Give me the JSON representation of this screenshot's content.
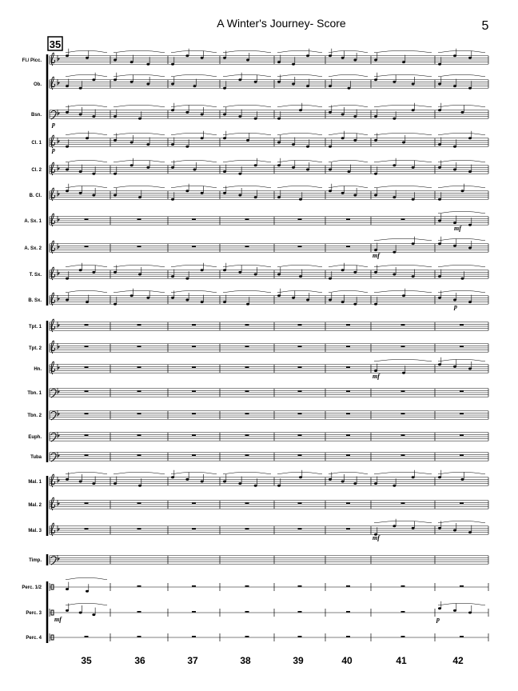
{
  "header": {
    "title": "A Winter's Journey- Score",
    "page_number": "5",
    "rehearsal_mark": "35"
  },
  "staves": [
    {
      "name": "Fl./ Picc."
    },
    {
      "name": "Ob."
    },
    {
      "name": "Bsn.",
      "dynamics": [
        "p"
      ]
    },
    {
      "name": "Cl. 1",
      "dynamics": [
        "p"
      ]
    },
    {
      "name": "Cl. 2"
    },
    {
      "name": "B. Cl."
    },
    {
      "name": "A. Sx. 1",
      "dynamics": [
        "mf"
      ]
    },
    {
      "name": "A. Sx. 2",
      "dynamics": [
        "mf"
      ]
    },
    {
      "name": "T. Sx."
    },
    {
      "name": "B. Sx.",
      "dynamics": [
        "p"
      ]
    },
    {
      "name": "Tpt. 1"
    },
    {
      "name": "Tpt. 2"
    },
    {
      "name": "Hn.",
      "dynamics": [
        "mf"
      ]
    },
    {
      "name": "Tbn. 1"
    },
    {
      "name": "Tbn. 2"
    },
    {
      "name": "Euph."
    },
    {
      "name": "Tuba"
    },
    {
      "name": "Mal. 1"
    },
    {
      "name": "Mal. 2"
    },
    {
      "name": "Mal. 3",
      "dynamics": [
        "mf"
      ]
    },
    {
      "name": "Timp."
    },
    {
      "name": "Perc. 1/2"
    },
    {
      "name": "Perc. 3",
      "dynamics": [
        "mf",
        "p"
      ]
    },
    {
      "name": "Perc. 4"
    }
  ],
  "measure_numbers": [
    "35",
    "36",
    "37",
    "38",
    "39",
    "40",
    "41",
    "42"
  ]
}
